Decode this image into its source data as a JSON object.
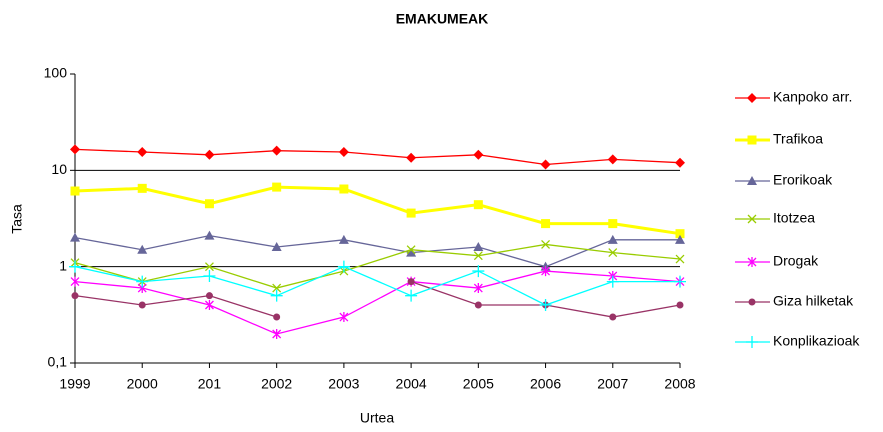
{
  "chart_data": {
    "type": "line",
    "title": "EMAKUMEAK",
    "x_label": "Urtea",
    "y_label": "Tasa",
    "log_scale": true,
    "grid": true,
    "legend": "right",
    "categories": [
      "1999",
      "2000",
      "201",
      "2002",
      "2003",
      "2004",
      "2005",
      "2006",
      "2007",
      "2008"
    ],
    "ylim": [
      0.1,
      100
    ],
    "yticks": [
      {
        "value": 0.1,
        "label": "0,1"
      },
      1,
      10,
      100
    ],
    "series": [
      {
        "name": "Kanpoko arr.",
        "color": "#ff0000",
        "marker": "diamond",
        "values": [
          16.5,
          15.5,
          14.5,
          16,
          15.5,
          13.5,
          14.5,
          11.5,
          13,
          12
        ]
      },
      {
        "name": "Trafikoa",
        "color": "#ffff00",
        "marker": "square",
        "values": [
          6.1,
          6.5,
          4.5,
          6.7,
          6.4,
          3.6,
          4.4,
          2.8,
          2.8,
          2.2
        ]
      },
      {
        "name": "Erorikoak",
        "color": "#666699",
        "marker": "triangle",
        "values": [
          2,
          1.5,
          2.1,
          1.6,
          1.9,
          1.4,
          1.6,
          1,
          1.9,
          1.9
        ]
      },
      {
        "name": "Itotzea",
        "color": "#99cc00",
        "marker": "x",
        "values": [
          1.1,
          0.7,
          1,
          0.6,
          0.9,
          1.5,
          1.3,
          1.7,
          1.4,
          1.2
        ]
      },
      {
        "name": "Drogak",
        "color": "#ff00ff",
        "marker": "asterisk",
        "values": [
          0.7,
          0.6,
          0.4,
          0.2,
          0.3,
          0.7,
          0.6,
          0.9,
          0.8,
          0.7
        ]
      },
      {
        "name": "Giza hilketak",
        "color": "#993366",
        "marker": "circle",
        "values": [
          0.5,
          0.4,
          0.5,
          0.3,
          null,
          0.7,
          0.4,
          0.4,
          0.3,
          0.4
        ]
      },
      {
        "name": "Konplikazioak",
        "color": "#00ffff",
        "marker": "plus",
        "values": [
          1,
          0.7,
          0.8,
          0.5,
          1,
          0.5,
          0.9,
          0.4,
          0.7,
          0.7
        ]
      }
    ]
  }
}
